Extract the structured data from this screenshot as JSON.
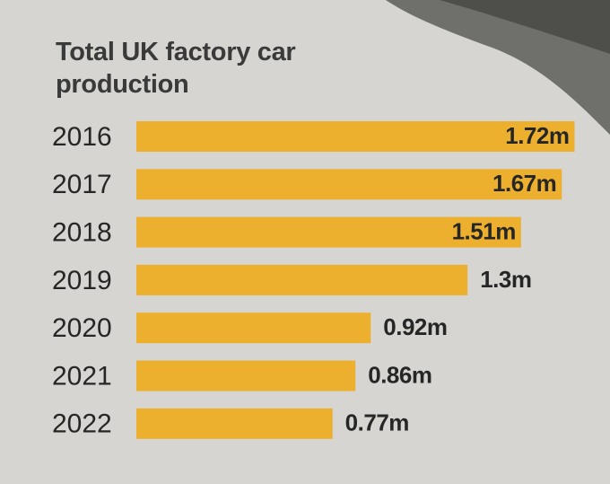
{
  "chart_data": {
    "type": "bar",
    "orientation": "horizontal",
    "title": "Total UK factory car production",
    "categories": [
      "2016",
      "2017",
      "2018",
      "2019",
      "2020",
      "2021",
      "2022"
    ],
    "values": [
      1.72,
      1.67,
      1.51,
      1.3,
      0.92,
      0.86,
      0.77
    ],
    "value_labels": [
      "1.72m",
      "1.67m",
      "1.51m",
      "1.3m",
      "0.92m",
      "0.86m",
      "0.77m"
    ],
    "color": "#ecb02e"
  }
}
